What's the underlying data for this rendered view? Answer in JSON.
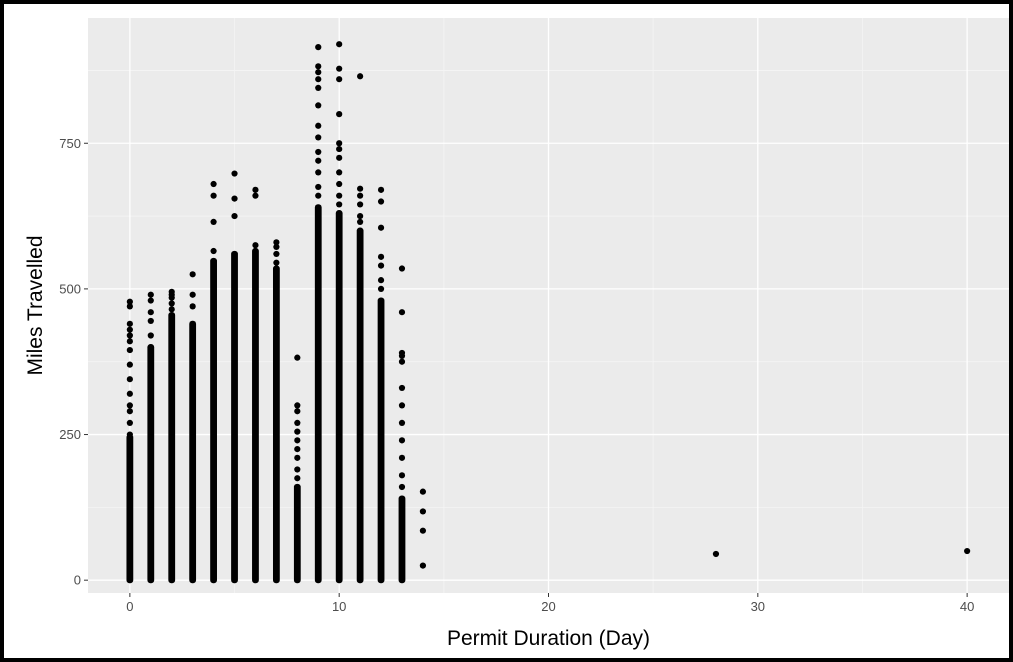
{
  "chart_data": {
    "type": "scatter",
    "title": "",
    "xlabel": "Permit Duration (Day)",
    "ylabel": "Miles Travelled",
    "xlim": [
      -2,
      42
    ],
    "ylim": [
      -22,
      965
    ],
    "x_ticks": [
      0,
      10,
      20,
      30,
      40
    ],
    "y_ticks": [
      0,
      250,
      500,
      750
    ],
    "x_tick_labels": [
      "0",
      "10",
      "20",
      "30",
      "40"
    ],
    "y_tick_labels": [
      "0",
      "250",
      "500",
      "750"
    ],
    "grid": true,
    "colors": {
      "panel": "#ebebeb",
      "grid_major": "#ffffff",
      "grid_minor": "#f5f5f5",
      "point": "#000000",
      "tick": "#4d4d4d"
    },
    "columns": [
      {
        "x": 0,
        "dense_max": 245,
        "outliers": [
          250,
          270,
          290,
          300,
          320,
          345,
          370,
          395,
          410,
          420,
          430,
          440,
          470,
          478
        ]
      },
      {
        "x": 1,
        "dense_max": 400,
        "outliers": [
          420,
          445,
          460,
          480,
          490
        ]
      },
      {
        "x": 2,
        "dense_max": 455,
        "outliers": [
          465,
          475,
          485,
          490,
          495
        ]
      },
      {
        "x": 3,
        "dense_max": 440,
        "outliers": [
          470,
          490,
          525
        ]
      },
      {
        "x": 4,
        "dense_max": 548,
        "outliers": [
          565,
          615,
          660,
          680
        ]
      },
      {
        "x": 5,
        "dense_max": 560,
        "outliers": [
          625,
          655,
          698
        ]
      },
      {
        "x": 6,
        "dense_max": 565,
        "outliers": [
          575,
          660,
          670
        ]
      },
      {
        "x": 7,
        "dense_max": 535,
        "outliers": [
          545,
          560,
          572,
          580
        ]
      },
      {
        "x": 8,
        "dense_max": 160,
        "outliers": [
          175,
          190,
          210,
          225,
          240,
          255,
          270,
          290,
          300,
          382
        ]
      },
      {
        "x": 9,
        "dense_max": 640,
        "outliers": [
          660,
          675,
          700,
          720,
          735,
          760,
          780,
          815,
          845,
          860,
          872,
          882,
          915
        ]
      },
      {
        "x": 10,
        "dense_max": 630,
        "outliers": [
          645,
          660,
          680,
          700,
          725,
          740,
          750,
          800,
          860,
          878,
          920
        ]
      },
      {
        "x": 11,
        "dense_max": 600,
        "outliers": [
          615,
          625,
          645,
          660,
          672,
          865
        ]
      },
      {
        "x": 12,
        "dense_max": 480,
        "outliers": [
          500,
          515,
          540,
          555,
          605,
          650,
          670
        ]
      },
      {
        "x": 13,
        "dense_max": 140,
        "outliers": [
          160,
          180,
          210,
          240,
          270,
          300,
          330,
          375,
          385,
          390,
          460,
          535
        ]
      },
      {
        "x": 14,
        "dense_max": 0,
        "outliers": [
          25,
          85,
          118,
          152
        ]
      },
      {
        "x": 28,
        "dense_max": 0,
        "outliers": [
          45
        ]
      },
      {
        "x": 40,
        "dense_max": 0,
        "outliers": [
          50
        ]
      }
    ]
  }
}
